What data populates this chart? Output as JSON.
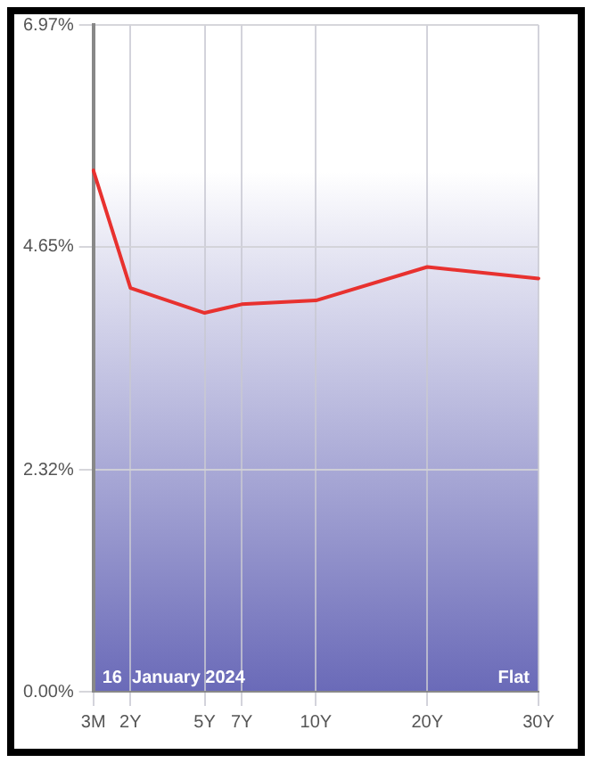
{
  "chart_data": {
    "type": "line",
    "categories": [
      "3M",
      "2Y",
      null,
      "5Y",
      "7Y",
      null,
      "10Y",
      null,
      null,
      "20Y",
      null,
      null,
      "30Y"
    ],
    "series": [
      {
        "color": "#e8312f",
        "values": [
          5.45,
          4.22,
          null,
          3.96,
          4.05,
          null,
          4.09,
          null,
          null,
          4.44,
          null,
          null,
          4.32
        ]
      }
    ],
    "ylim": [
      0,
      6.97
    ],
    "yticks": [
      {
        "value": 0,
        "label": "0.00%"
      },
      {
        "value": 2.32,
        "label": "2.32%"
      },
      {
        "value": 4.65,
        "label": "4.65%"
      },
      {
        "value": 6.97,
        "label": "6.97%"
      }
    ],
    "grid": true,
    "marker": "none",
    "line_style": "solid",
    "legend": false,
    "annotations": [
      "16  January 2024",
      "Flat"
    ]
  }
}
